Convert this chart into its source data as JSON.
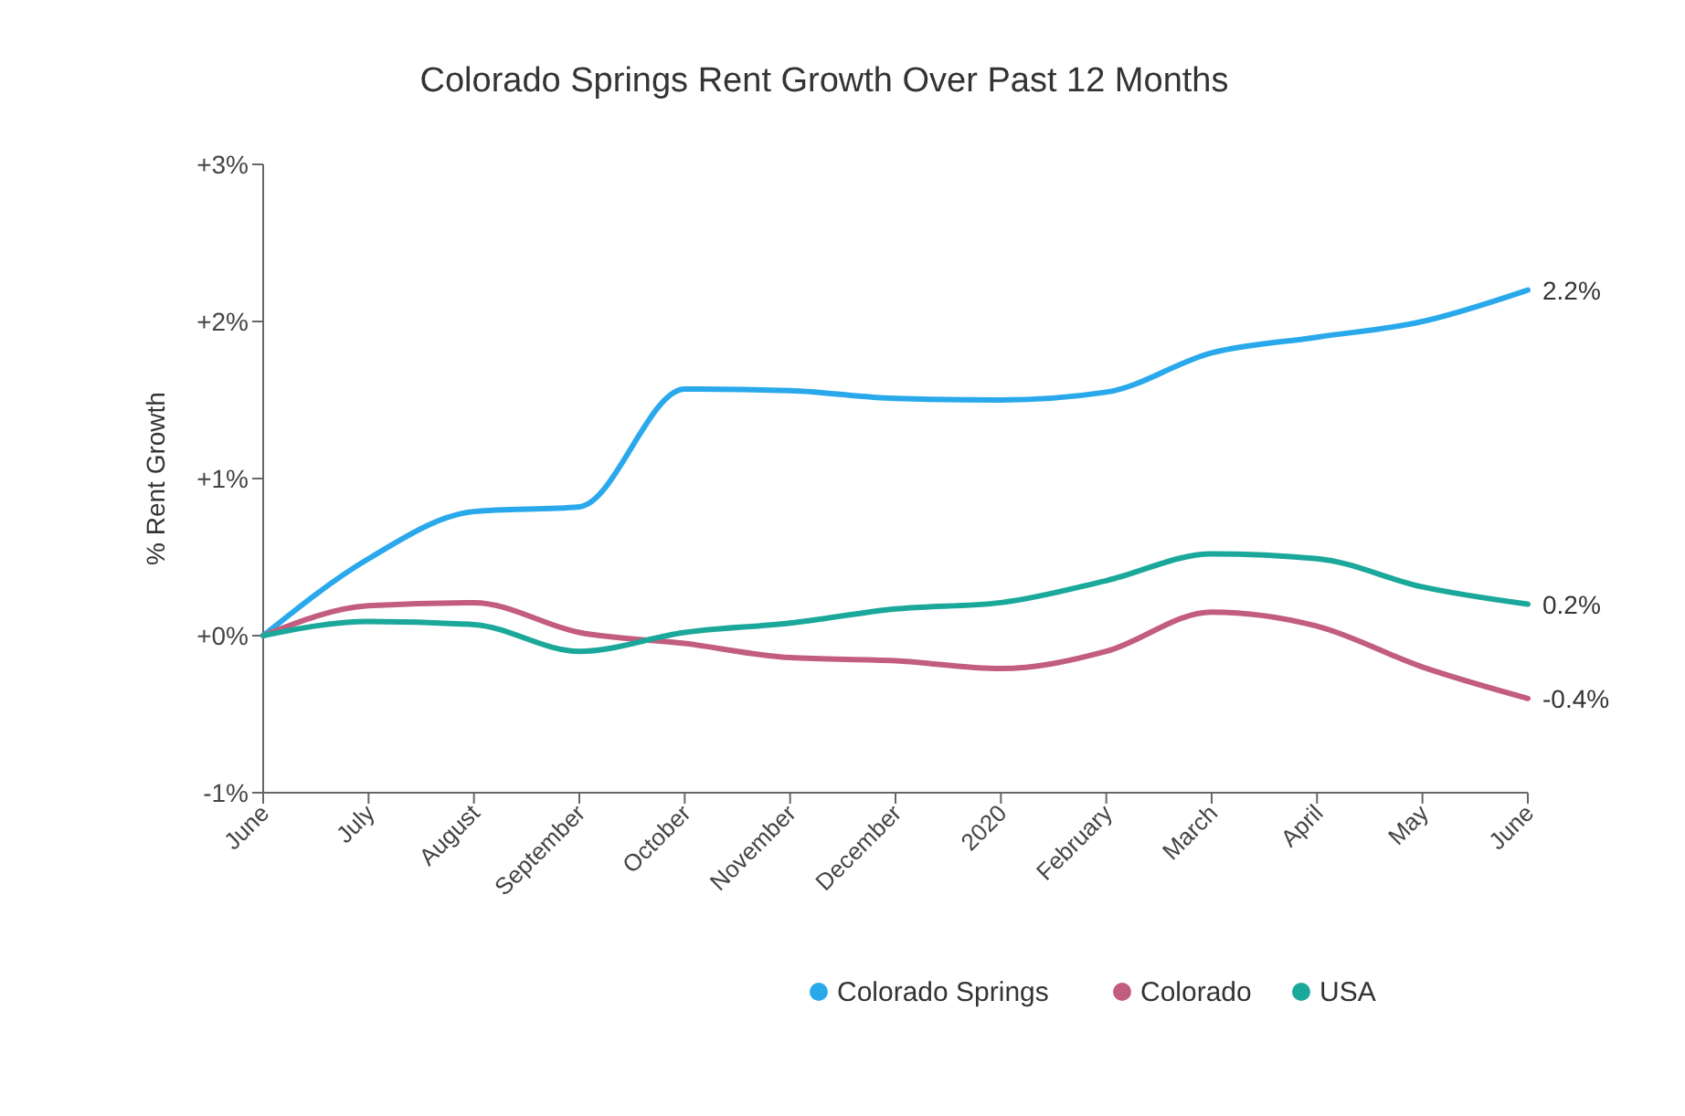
{
  "chart_data": {
    "type": "line",
    "title": "Colorado Springs Rent Growth Over Past 12 Months",
    "ylabel": "% Rent Growth",
    "categories": [
      "June",
      "July",
      "August",
      "September",
      "October",
      "November",
      "December",
      "2020",
      "February",
      "March",
      "April",
      "May",
      "June"
    ],
    "series": [
      {
        "name": "Colorado Springs",
        "color": "#29a9ec",
        "values": [
          0,
          0.49,
          0.79,
          0.82,
          1.57,
          1.56,
          1.51,
          1.5,
          1.55,
          1.8,
          1.9,
          2.0,
          2.2
        ],
        "value_labels": [
          null,
          null,
          null,
          null,
          null,
          null,
          null,
          null,
          null,
          null,
          null,
          null,
          "2.2%"
        ]
      },
      {
        "name": "Colorado",
        "color": "#c25d7f",
        "values": [
          0,
          0.19,
          0.21,
          0.02,
          -0.05,
          -0.14,
          -0.16,
          -0.21,
          -0.1,
          0.15,
          0.06,
          -0.2,
          -0.4
        ],
        "value_labels": [
          null,
          null,
          null,
          null,
          null,
          null,
          null,
          null,
          null,
          null,
          null,
          null,
          "-0.4%"
        ]
      },
      {
        "name": "USA",
        "color": "#1aa89a",
        "values": [
          0,
          0.09,
          0.07,
          -0.1,
          0.02,
          0.08,
          0.17,
          0.21,
          0.35,
          0.52,
          0.49,
          0.31,
          0.2
        ],
        "value_labels": [
          null,
          null,
          null,
          null,
          null,
          null,
          null,
          null,
          null,
          null,
          null,
          null,
          "0.2%"
        ]
      }
    ],
    "ylim": [
      -1,
      3
    ],
    "yticks": [
      {
        "value": -1,
        "label": "-1%"
      },
      {
        "value": 0,
        "label": "+0%"
      },
      {
        "value": 1,
        "label": "+1%"
      },
      {
        "value": 2,
        "label": "+2%"
      },
      {
        "value": 3,
        "label": "+3%"
      }
    ],
    "grid": false,
    "legend": "bottom",
    "marker": "none",
    "line_style": "solid"
  }
}
